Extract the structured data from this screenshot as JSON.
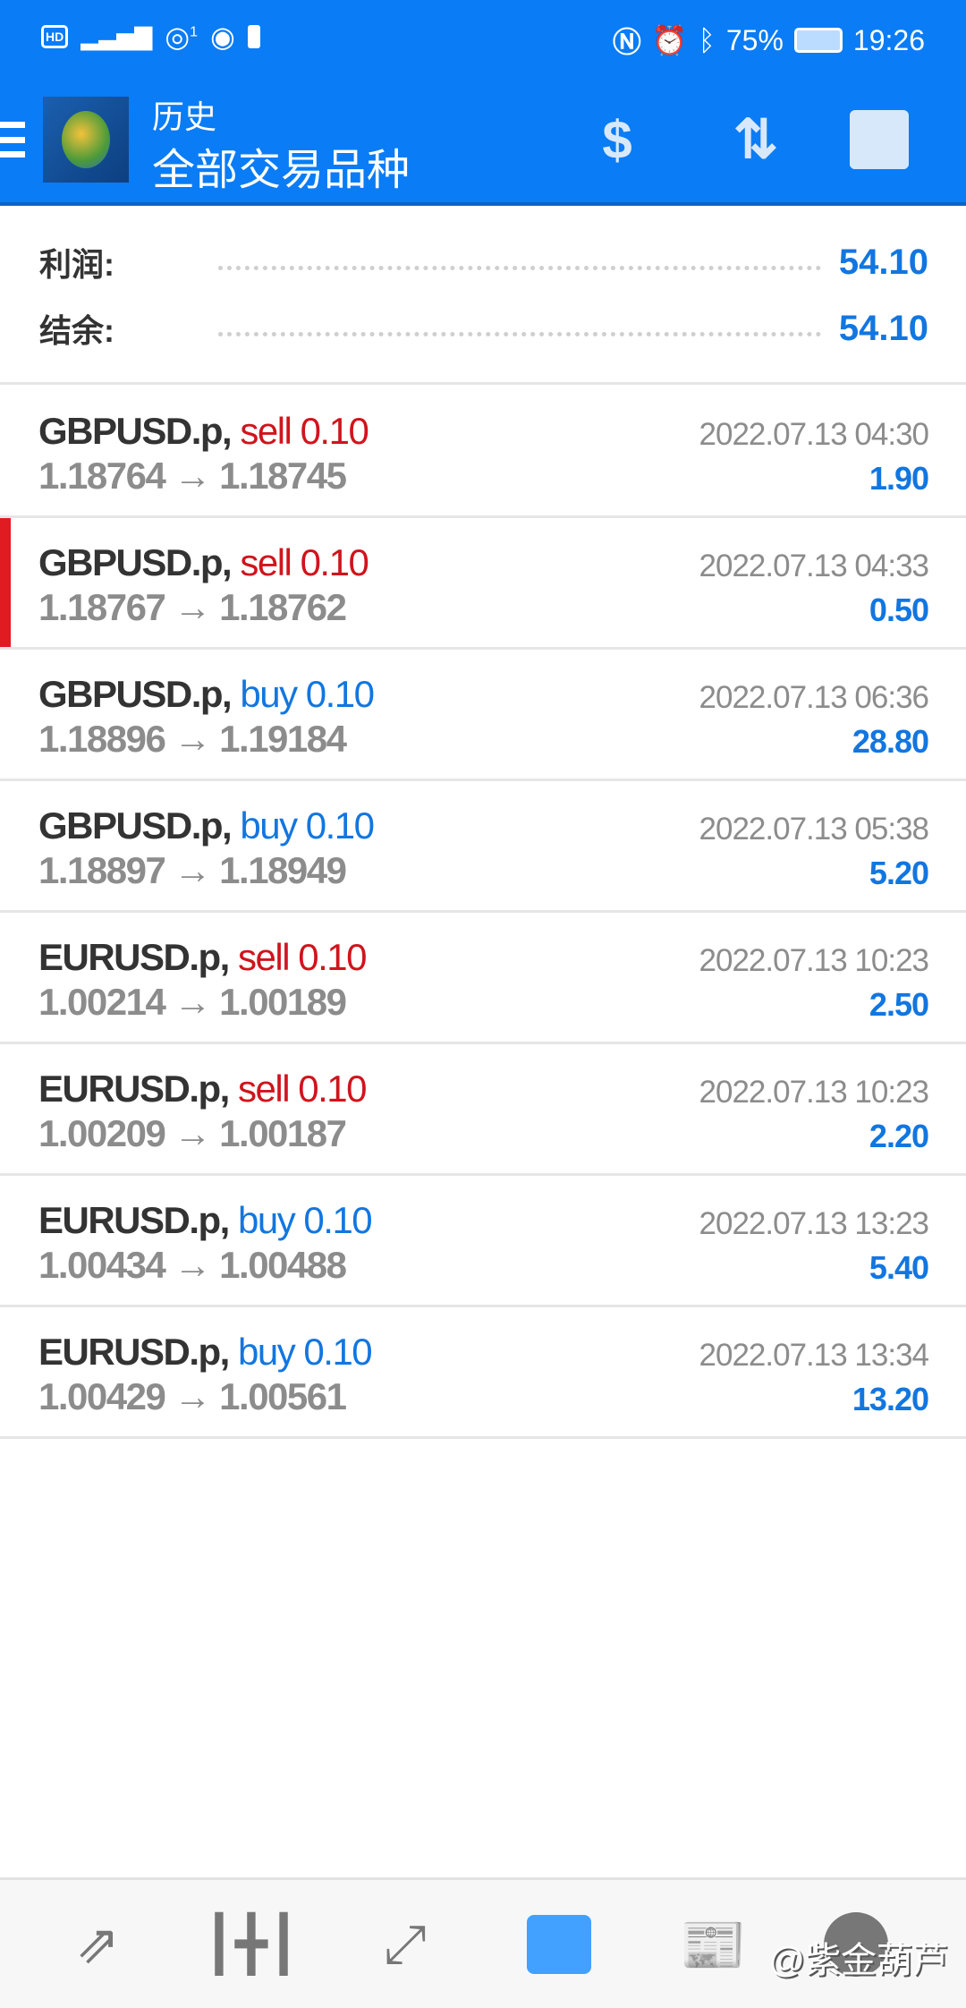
{
  "status_bar": {
    "left_icons": [
      "hd-icon",
      "4g-signal-icon",
      "hotspot-icon",
      "eye-icon",
      "battery-alert-icon"
    ],
    "hd": "HD",
    "hotspot_count": "1",
    "battery": "75%",
    "time": "19:26"
  },
  "header": {
    "title": "历史",
    "subtitle": "全部交易品种",
    "actions": [
      "currency-exchange-icon",
      "sort-icon",
      "calendar-icon"
    ]
  },
  "summary": {
    "profit_label": "利润:",
    "profit_value": "54.10",
    "balance_label": "结余:",
    "balance_value": "54.10"
  },
  "trades": [
    {
      "symbol": "GBPUSD.p,",
      "side": "sell",
      "volume": "0.10",
      "open": "1.18764",
      "close": "1.18745",
      "time": "2022.07.13 04:30",
      "profit": "1.90"
    },
    {
      "symbol": "GBPUSD.p,",
      "side": "sell",
      "volume": "0.10",
      "open": "1.18767",
      "close": "1.18762",
      "time": "2022.07.13 04:33",
      "profit": "0.50",
      "selected": true
    },
    {
      "symbol": "GBPUSD.p,",
      "side": "buy",
      "volume": "0.10",
      "open": "1.18896",
      "close": "1.19184",
      "time": "2022.07.13 06:36",
      "profit": "28.80"
    },
    {
      "symbol": "GBPUSD.p,",
      "side": "buy",
      "volume": "0.10",
      "open": "1.18897",
      "close": "1.18949",
      "time": "2022.07.13 05:38",
      "profit": "5.20"
    },
    {
      "symbol": "EURUSD.p,",
      "side": "sell",
      "volume": "0.10",
      "open": "1.00214",
      "close": "1.00189",
      "time": "2022.07.13 10:23",
      "profit": "2.50"
    },
    {
      "symbol": "EURUSD.p,",
      "side": "sell",
      "volume": "0.10",
      "open": "1.00209",
      "close": "1.00187",
      "time": "2022.07.13 10:23",
      "profit": "2.20"
    },
    {
      "symbol": "EURUSD.p,",
      "side": "buy",
      "volume": "0.10",
      "open": "1.00434",
      "close": "1.00488",
      "time": "2022.07.13 13:23",
      "profit": "5.40"
    },
    {
      "symbol": "EURUSD.p,",
      "side": "buy",
      "volume": "0.10",
      "open": "1.00429",
      "close": "1.00561",
      "time": "2022.07.13 13:34",
      "profit": "13.20"
    }
  ],
  "arrow": "→",
  "bottom_nav": {
    "items": [
      "quotes-icon",
      "chart-icon",
      "trade-icon",
      "history-icon",
      "news-icon",
      "messages-icon"
    ],
    "active": "history-icon"
  },
  "watermark": "@紫金葫芦",
  "colors": {
    "accent": "#0a7cf5",
    "sell": "#d0141c",
    "buy": "#1276e0",
    "selected_marker": "#e01b22"
  }
}
